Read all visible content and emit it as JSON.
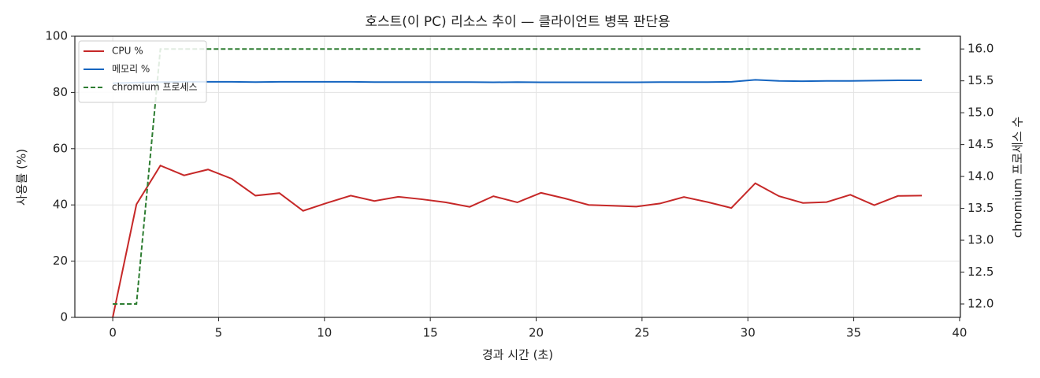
{
  "chart_data": {
    "type": "line",
    "title": "호스트(이 PC) 리소스 추이 — 클라이언트 병목 판단용",
    "xlabel": "경과 시간 (초)",
    "ylabel": "사용률 (%)",
    "y2label": "chromium 프로세스 수",
    "x": [
      0,
      1.12,
      2.25,
      3.37,
      4.5,
      5.62,
      6.74,
      7.87,
      8.99,
      10.12,
      11.24,
      12.36,
      13.49,
      14.61,
      15.74,
      16.86,
      17.98,
      19.11,
      20.23,
      21.36,
      22.48,
      23.6,
      24.73,
      25.85,
      26.98,
      28.1,
      29.22,
      30.35,
      31.47,
      32.6,
      33.72,
      34.84,
      35.97,
      37.09,
      38.22
    ],
    "series": [
      {
        "name": "CPU %",
        "color": "#c62828",
        "linestyle": "solid",
        "values": [
          0,
          40.2,
          54,
          50.5,
          52.6,
          49.3,
          43.3,
          44.2,
          37.9,
          40.7,
          43.3,
          41.4,
          42.9,
          42.0,
          40.9,
          39.3,
          43.1,
          40.9,
          44.3,
          42.3,
          40.0,
          39.7,
          39.4,
          40.5,
          42.8,
          41.0,
          38.9,
          47.7,
          43.1,
          40.7,
          41.0,
          43.6,
          39.9,
          43.2,
          43.3
        ]
      },
      {
        "name": "메모리 %",
        "color": "#1565c0",
        "linestyle": "solid",
        "values": [
          83.3,
          83.5,
          83.7,
          83.8,
          83.8,
          83.8,
          83.7,
          83.8,
          83.8,
          83.8,
          83.8,
          83.7,
          83.7,
          83.7,
          83.7,
          83.7,
          83.6,
          83.7,
          83.6,
          83.6,
          83.6,
          83.6,
          83.6,
          83.7,
          83.7,
          83.7,
          83.8,
          84.5,
          84.1,
          84.0,
          84.1,
          84.1,
          84.2,
          84.3,
          84.3
        ]
      },
      {
        "name": "chromium 프로세스",
        "color": "#2e7d32",
        "linestyle": "dashed",
        "axis": "y2",
        "values": [
          12,
          12,
          16,
          16,
          16,
          16,
          16,
          16,
          16,
          16,
          16,
          16,
          16,
          16,
          16,
          16,
          16,
          16,
          16,
          16,
          16,
          16,
          16,
          16,
          16,
          16,
          16,
          16,
          16,
          16,
          16,
          16,
          16,
          16,
          16
        ]
      }
    ],
    "xlim": [
      -1.79,
      40.04
    ],
    "xticks": [
      0,
      5,
      10,
      15,
      20,
      25,
      30,
      35,
      40
    ],
    "ylim": [
      0,
      100
    ],
    "yticks": [
      0,
      20,
      40,
      60,
      80,
      100
    ],
    "y2lim": [
      11.79,
      16.2
    ],
    "y2ticks": [
      {
        "value": 12,
        "label": "12.0"
      },
      {
        "value": 12.5,
        "label": "12.5"
      },
      {
        "value": 13,
        "label": "13.0"
      },
      {
        "value": 13.5,
        "label": "13.5"
      },
      {
        "value": 14,
        "label": "14.0"
      },
      {
        "value": 14.5,
        "label": "14.5"
      },
      {
        "value": 15,
        "label": "15.0"
      },
      {
        "value": 15.5,
        "label": "15.5"
      },
      {
        "value": 16,
        "label": "16.0"
      }
    ],
    "grid": true,
    "legend": "upper-left"
  }
}
